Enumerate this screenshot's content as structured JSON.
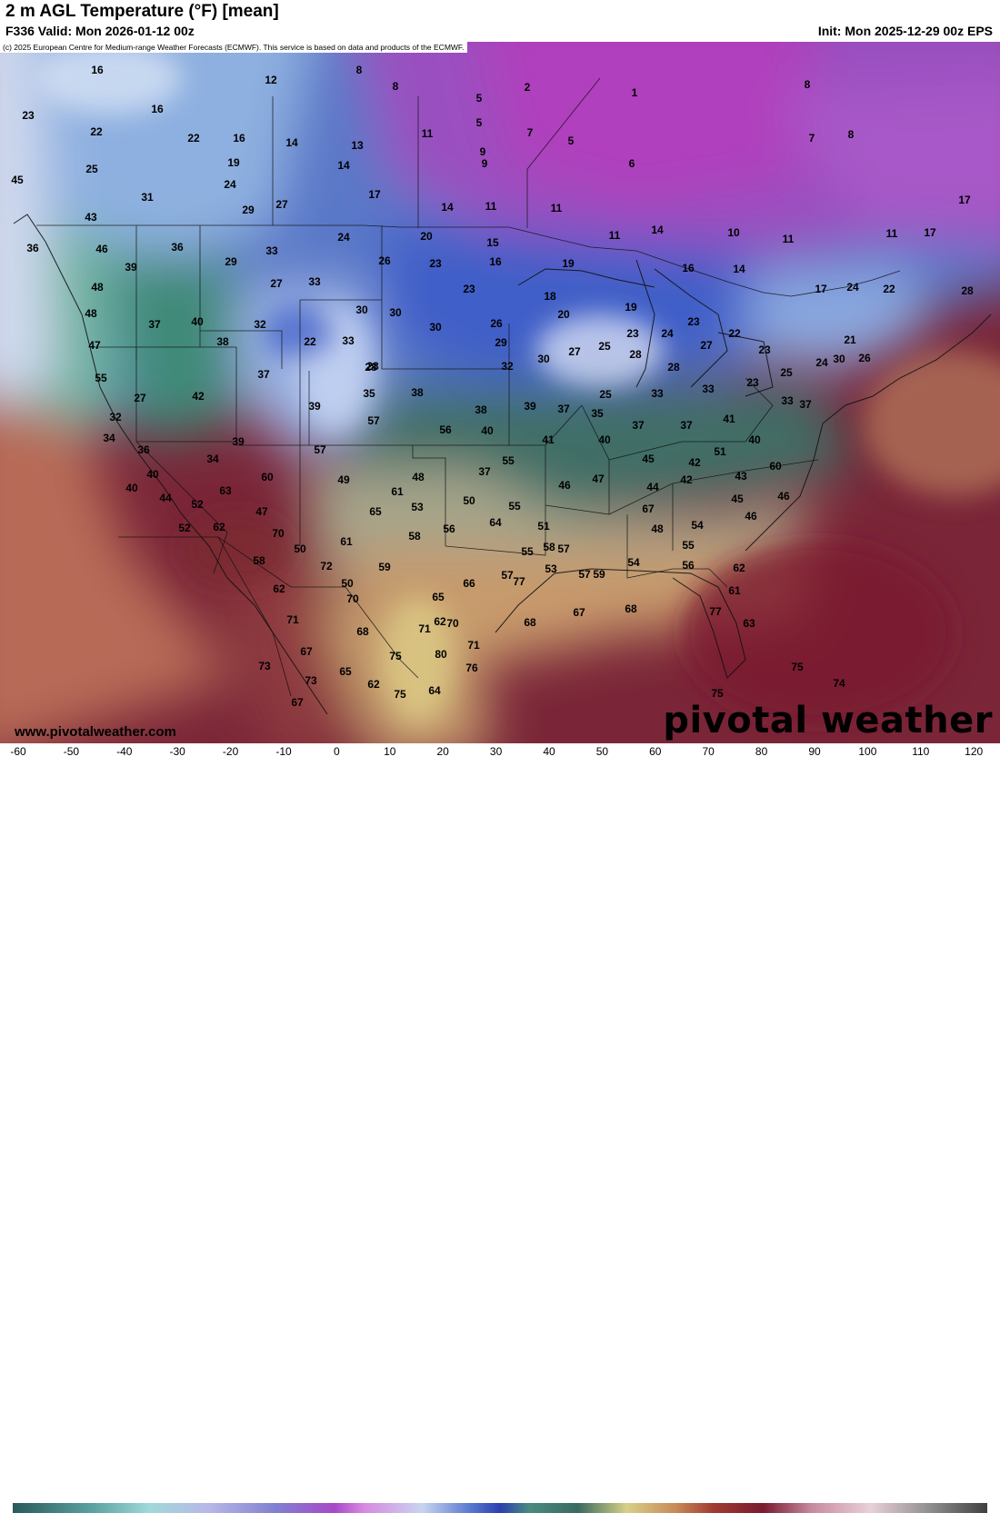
{
  "header": {
    "title": "2 m AGL Temperature (°F) [mean]",
    "valid": "F336 Valid: Mon 2026-01-12 00z",
    "init": "Init: Mon 2025-12-29 00z EPS"
  },
  "copyright": "(c) 2025 European Centre for Medium-range Weather Forecasts (ECMWF). This service is based on data and products of the ECMWF.",
  "website": "www.pivotalweather.com",
  "brand": "pivotal weather",
  "colorbar": {
    "ticks": [
      "-60",
      "-50",
      "-40",
      "-30",
      "-20",
      "-10",
      "0",
      "10",
      "20",
      "30",
      "40",
      "50",
      "60",
      "70",
      "80",
      "90",
      "100",
      "110",
      "120"
    ]
  },
  "temperature_labels": [
    "16",
    "8",
    "8",
    "2",
    "12",
    "16",
    "23",
    "22",
    "22",
    "16",
    "14",
    "13",
    "5",
    "1",
    "7",
    "8",
    "11",
    "5",
    "5",
    "9",
    "25",
    "19",
    "14",
    "6",
    "8",
    "7",
    "24",
    "45",
    "31",
    "29",
    "27",
    "17",
    "14",
    "11",
    "11",
    "9",
    "17",
    "43",
    "20",
    "15",
    "11",
    "14",
    "10",
    "11",
    "46",
    "36",
    "24",
    "11",
    "17",
    "36",
    "33",
    "29",
    "26",
    "23",
    "16",
    "19",
    "16",
    "14",
    "39",
    "27",
    "33",
    "48",
    "23",
    "18",
    "17",
    "24",
    "22",
    "30",
    "30",
    "20",
    "19",
    "28",
    "48",
    "37",
    "40",
    "32",
    "30",
    "26",
    "23",
    "23",
    "22",
    "38",
    "22",
    "24",
    "27",
    "47",
    "29",
    "27",
    "25",
    "23",
    "21",
    "33",
    "28",
    "25",
    "24",
    "26",
    "55",
    "37",
    "32",
    "30",
    "28",
    "28",
    "28",
    "33",
    "30",
    "23",
    "27",
    "42",
    "25",
    "33",
    "35",
    "39",
    "38",
    "38",
    "39",
    "37",
    "35",
    "37",
    "37",
    "37",
    "33",
    "32",
    "57",
    "41",
    "34",
    "56",
    "40",
    "41",
    "40",
    "39",
    "51",
    "36",
    "57",
    "42",
    "40",
    "34",
    "55",
    "45",
    "40",
    "60",
    "40",
    "60",
    "37",
    "49",
    "48",
    "46",
    "47",
    "44",
    "43",
    "42",
    "45",
    "46",
    "44",
    "63",
    "61",
    "50",
    "53",
    "52",
    "67",
    "46",
    "47",
    "65",
    "55",
    "52",
    "62",
    "70",
    "64",
    "56",
    "51",
    "54",
    "48",
    "50",
    "61",
    "58",
    "58",
    "55",
    "57",
    "55",
    "50",
    "58",
    "72",
    "59",
    "57",
    "54",
    "57",
    "53",
    "59",
    "56",
    "61",
    "62",
    "77",
    "66",
    "62",
    "65",
    "62",
    "70",
    "70",
    "68",
    "67",
    "68",
    "77",
    "63",
    "71",
    "68",
    "75",
    "71",
    "71",
    "67",
    "76",
    "80",
    "73",
    "65",
    "73",
    "62",
    "75",
    "67",
    "75",
    "75",
    "74",
    "64"
  ]
}
